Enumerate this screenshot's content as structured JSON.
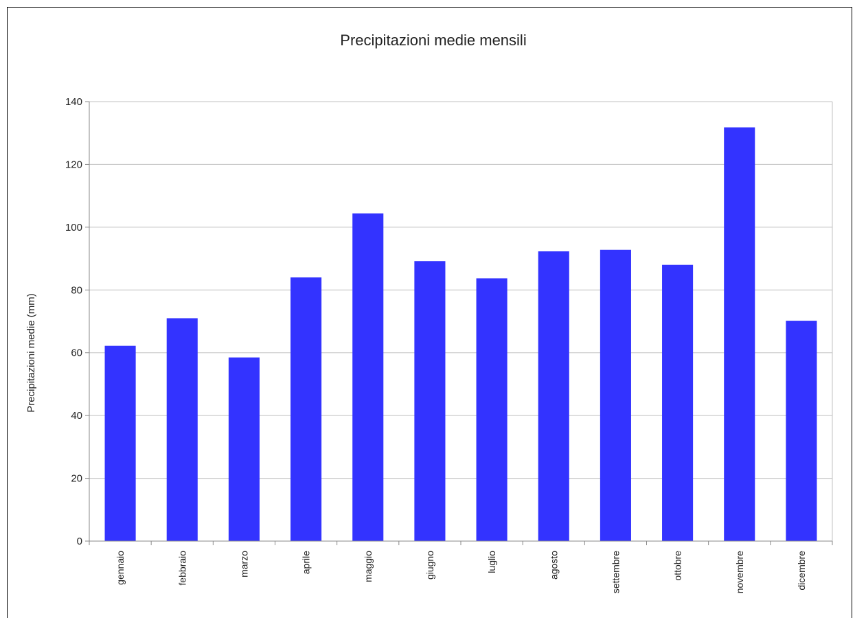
{
  "chart_data": {
    "type": "bar",
    "title": "Precipitazioni medie mensili",
    "xlabel": "",
    "ylabel": "Precipitazioni medie (mm)",
    "ylim": [
      0,
      140
    ],
    "yticks": [
      0,
      20,
      40,
      60,
      80,
      100,
      120,
      140
    ],
    "grid": true,
    "legend": "none",
    "categories": [
      "gennaio",
      "febbraio",
      "marzo",
      "aprile",
      "maggio",
      "giugno",
      "luglio",
      "agosto",
      "settembre",
      "ottobre",
      "novembre",
      "dicembre"
    ],
    "values": [
      62.2,
      71,
      58.5,
      84,
      104.4,
      89.2,
      83.7,
      92.3,
      92.8,
      88,
      131.8,
      70.2
    ],
    "bar_color": "#3333ff",
    "grid_color": "#c0c0c0"
  }
}
